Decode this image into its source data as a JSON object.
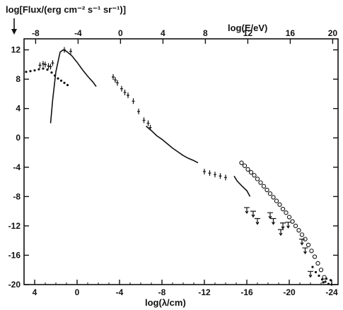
{
  "chart_data": {
    "type": "scatter",
    "title": "",
    "ylabel": "log[Flux/(erg cm⁻² s⁻¹ sr⁻¹)]",
    "xlabel": "log(λ/cm)",
    "x2label": "log(E/eV)",
    "xlim": [
      5.0,
      -24.6
    ],
    "ylim": [
      -20,
      13.5
    ],
    "x_ticks": [
      4,
      0,
      -4,
      -8,
      -12,
      -16,
      -20,
      -24
    ],
    "y_ticks": [
      12,
      8,
      4,
      0,
      -4,
      -8,
      -12,
      -16,
      -20
    ],
    "top_ticks": [
      -8,
      -4,
      0,
      4,
      8,
      12,
      16,
      20
    ],
    "top_axis_map": "log(E/eV) = -4.0937 - log(λ/cm)",
    "grid": false,
    "legend": "none",
    "series": [
      {
        "marker": "dots",
        "points": [
          [
            4.8,
            9.0
          ],
          [
            4.4,
            9.1
          ],
          [
            4.0,
            9.2
          ],
          [
            3.6,
            9.35
          ],
          [
            3.2,
            9.45
          ],
          [
            2.8,
            9.3
          ],
          [
            2.4,
            8.9
          ],
          [
            2.1,
            8.5
          ],
          [
            1.8,
            8.1
          ],
          [
            1.5,
            7.8
          ],
          [
            1.2,
            7.5
          ],
          [
            0.9,
            7.2
          ]
        ]
      },
      {
        "marker": "line",
        "points": [
          [
            -1.8,
            7.0
          ],
          [
            -1.5,
            7.6
          ],
          [
            -1.0,
            8.4
          ],
          [
            -0.5,
            9.3
          ],
          [
            0.0,
            10.3
          ],
          [
            0.5,
            11.2
          ],
          [
            1.0,
            11.8
          ],
          [
            1.3,
            12.0
          ],
          [
            1.6,
            11.7
          ],
          [
            2.0,
            9.0
          ],
          [
            2.3,
            5.2
          ],
          [
            2.5,
            2.0
          ]
        ]
      },
      {
        "marker": "points",
        "points": [
          [
            1.2,
            12.0
          ],
          [
            0.6,
            11.8
          ],
          [
            2.3,
            10.2
          ],
          [
            2.7,
            9.8
          ],
          [
            3.0,
            10.0
          ],
          [
            2.5,
            9.7
          ],
          [
            3.5,
            9.9
          ],
          [
            3.2,
            10.1
          ],
          [
            -3.4,
            8.3
          ],
          [
            -3.6,
            7.9
          ],
          [
            -3.8,
            7.5
          ],
          [
            -4.2,
            6.7
          ],
          [
            -4.5,
            6.2
          ],
          [
            -4.8,
            5.8
          ],
          [
            -5.3,
            5.0
          ],
          [
            -5.8,
            3.6
          ],
          [
            -6.3,
            2.4
          ],
          [
            -6.7,
            2.0
          ],
          [
            -6.9,
            1.4
          ]
        ]
      },
      {
        "marker": "line",
        "points": [
          [
            -6.5,
            1.6
          ],
          [
            -7.0,
            1.0
          ],
          [
            -7.5,
            0.3
          ],
          [
            -8.0,
            -0.2
          ],
          [
            -8.5,
            -0.8
          ],
          [
            -9.0,
            -1.4
          ],
          [
            -9.5,
            -1.9
          ],
          [
            -10.0,
            -2.4
          ],
          [
            -10.5,
            -2.8
          ],
          [
            -11.0,
            -3.1
          ],
          [
            -11.4,
            -3.4
          ]
        ]
      },
      {
        "marker": "points",
        "points": [
          [
            -12.0,
            -4.6
          ],
          [
            -12.5,
            -4.8
          ],
          [
            -13.0,
            -5.0
          ],
          [
            -13.5,
            -5.2
          ],
          [
            -14.0,
            -5.4
          ]
        ]
      },
      {
        "marker": "line",
        "points": [
          [
            -14.8,
            -5.2
          ],
          [
            -15.1,
            -5.9
          ],
          [
            -15.5,
            -6.5
          ],
          [
            -16.0,
            -7.2
          ],
          [
            -16.3,
            -8.0
          ]
        ]
      },
      {
        "marker": "open-circles",
        "points": [
          [
            -15.5,
            -3.4
          ],
          [
            -15.8,
            -3.8
          ],
          [
            -16.1,
            -4.3
          ],
          [
            -16.4,
            -4.7
          ],
          [
            -16.7,
            -5.1
          ],
          [
            -17.0,
            -5.6
          ],
          [
            -17.3,
            -6.1
          ],
          [
            -17.6,
            -6.6
          ],
          [
            -17.9,
            -7.1
          ],
          [
            -18.2,
            -7.6
          ],
          [
            -18.5,
            -8.1
          ],
          [
            -18.8,
            -8.6
          ],
          [
            -19.1,
            -9.1
          ],
          [
            -19.4,
            -9.7
          ],
          [
            -19.7,
            -10.2
          ],
          [
            -20.0,
            -10.8
          ],
          [
            -20.3,
            -11.4
          ],
          [
            -20.6,
            -12.0
          ],
          [
            -20.9,
            -12.6
          ],
          [
            -21.2,
            -13.2
          ],
          [
            -21.5,
            -13.8
          ],
          [
            -21.8,
            -14.6
          ],
          [
            -22.1,
            -15.4
          ],
          [
            -22.4,
            -16.2
          ],
          [
            -22.7,
            -17.1
          ],
          [
            -23.0,
            -18.0
          ],
          [
            -23.3,
            -19.0
          ]
        ]
      },
      {
        "marker": "upper-limits",
        "points": [
          [
            -16.0,
            -9.5
          ],
          [
            -16.6,
            -10.0
          ],
          [
            -17.0,
            -11.0
          ],
          [
            -18.2,
            -10.2
          ],
          [
            -18.5,
            -11.0
          ],
          [
            -19.4,
            -11.6
          ],
          [
            -19.9,
            -11.5
          ],
          [
            -19.2,
            -12.5
          ],
          [
            -21.2,
            -13.8
          ],
          [
            -21.5,
            -15.0
          ],
          [
            -22.0,
            -18.2
          ]
        ]
      },
      {
        "marker": "dense-dots",
        "points": [
          [
            -22.2,
            -17.6
          ],
          [
            -22.5,
            -18.3
          ],
          [
            -22.8,
            -18.8
          ],
          [
            -23.1,
            -19.3
          ],
          [
            -23.4,
            -19.6
          ],
          [
            -23.7,
            -19.9
          ],
          [
            -24.0,
            -20.0
          ],
          [
            -23.5,
            -19.2
          ],
          [
            -23.2,
            -19.7
          ],
          [
            -23.9,
            -19.4
          ]
        ]
      }
    ]
  }
}
